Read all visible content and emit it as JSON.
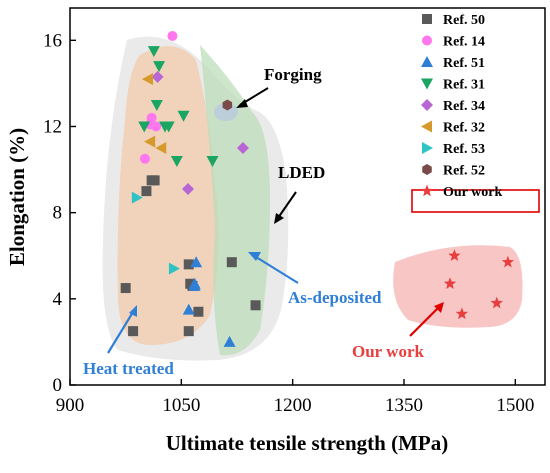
{
  "chart_data": {
    "type": "scatter",
    "xlabel": "Ultimate tensile strength (MPa)",
    "ylabel": "Elongation (%)",
    "xlim": [
      900,
      1540
    ],
    "ylim": [
      0,
      17.5
    ],
    "xticks": [
      900,
      1050,
      1200,
      1350,
      1500
    ],
    "yticks": [
      0,
      4,
      8,
      12,
      16
    ],
    "x_tick_labels": [
      "900",
      "1050",
      "1200",
      "1350",
      "1500"
    ],
    "y_tick_labels": [
      "0",
      "4",
      "8",
      "12",
      "16"
    ],
    "grid": false,
    "legend_position": "top-right",
    "series": [
      {
        "name": "Ref. 50",
        "marker": "square",
        "color": "#595959",
        "points": [
          [
            975,
            4.5
          ],
          [
            985,
            2.5
          ],
          [
            1003,
            9.0
          ],
          [
            1010,
            9.5
          ],
          [
            1014,
            9.5
          ],
          [
            1060,
            5.6
          ],
          [
            1062,
            4.7
          ],
          [
            1065,
            4.6
          ],
          [
            1073,
            3.4
          ],
          [
            1060,
            2.5
          ],
          [
            1118,
            5.7
          ],
          [
            1150,
            3.7
          ]
        ]
      },
      {
        "name": "Ref. 14",
        "marker": "circle",
        "color": "#ff77ee",
        "points": [
          [
            1001,
            10.5
          ],
          [
            1008,
            12.1
          ],
          [
            1010,
            12.4
          ],
          [
            1016,
            12.0
          ],
          [
            1038,
            16.2
          ]
        ]
      },
      {
        "name": "Ref. 51",
        "marker": "triangle-up",
        "color": "#2f7fd7",
        "points": [
          [
            1068,
            4.7
          ],
          [
            1070,
            5.7
          ],
          [
            1060,
            3.5
          ],
          [
            1068,
            4.6
          ],
          [
            1115,
            2.0
          ]
        ]
      },
      {
        "name": "Ref. 31",
        "marker": "triangle-down",
        "color": "#1aa563",
        "points": [
          [
            1013,
            15.5
          ],
          [
            1020,
            14.8
          ],
          [
            1017,
            13.0
          ],
          [
            1033,
            12.0
          ],
          [
            1044,
            10.4
          ],
          [
            1053,
            12.5
          ],
          [
            1092,
            10.4
          ],
          [
            1000,
            12.0
          ],
          [
            1028,
            12.0
          ]
        ]
      },
      {
        "name": "Ref. 34",
        "marker": "diamond",
        "color": "#b866d6",
        "points": [
          [
            1018,
            14.3
          ],
          [
            1059,
            9.1
          ],
          [
            1133,
            11.0
          ]
        ]
      },
      {
        "name": "Ref. 32",
        "marker": "triangle-left",
        "color": "#d69a2a",
        "points": [
          [
            1005,
            14.2
          ],
          [
            1008,
            11.3
          ],
          [
            1023,
            11.0
          ]
        ]
      },
      {
        "name": "Ref. 53",
        "marker": "triangle-right",
        "color": "#2ec4c4",
        "points": [
          [
            990,
            8.7
          ],
          [
            1040,
            5.4
          ]
        ]
      },
      {
        "name": "Ref. 52",
        "marker": "hexagon",
        "color": "#7a4a4a",
        "points": [
          [
            1112,
            13.0
          ]
        ]
      },
      {
        "name": "Our work",
        "marker": "star",
        "color": "#e83e3e",
        "points": [
          [
            1418,
            6.0
          ],
          [
            1412,
            4.7
          ],
          [
            1428,
            3.3
          ],
          [
            1475,
            3.8
          ],
          [
            1490,
            5.7
          ]
        ]
      }
    ],
    "annotations": [
      "Forging",
      "LDED",
      "As-deposited",
      "Heat treated",
      "Our work"
    ]
  }
}
